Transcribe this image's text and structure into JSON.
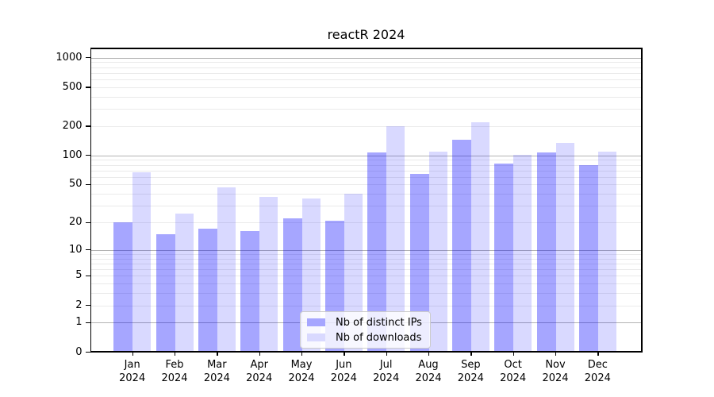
{
  "title": "reactR 2024",
  "chart_data": {
    "type": "bar",
    "title": "reactR 2024",
    "categories": [
      "Jan",
      "Feb",
      "Mar",
      "Apr",
      "May",
      "Jun",
      "Jul",
      "Aug",
      "Sep",
      "Oct",
      "Nov",
      "Dec"
    ],
    "category_year": "2024",
    "series": [
      {
        "name": "Nb of distinct IPs",
        "color": "rgba(0,0,255,0.35)",
        "color_hex": "#A6A6FF",
        "values": [
          20,
          15,
          17,
          16,
          22,
          21,
          107,
          65,
          145,
          83,
          107,
          80
        ]
      },
      {
        "name": "Nb of downloads",
        "color": "rgba(0,0,255,0.15)",
        "color_hex": "#D9D9FF",
        "values": [
          67,
          25,
          47,
          37,
          36,
          40,
          198,
          110,
          218,
          102,
          134,
          109
        ]
      }
    ],
    "yscale": "log1p",
    "yticks": [
      0,
      1,
      2,
      5,
      10,
      20,
      50,
      100,
      200,
      500,
      1000
    ],
    "ylim": [
      0,
      1270
    ],
    "xlabel": "",
    "ylabel": "",
    "grid": true,
    "legend_position": "lower center"
  },
  "colors": {
    "background": "#FFFFFF",
    "major_grid": "#B3B3B3",
    "minor_grid": "#EAEAEA",
    "spine": "#000000",
    "text": "#000000",
    "legend_border": "#CCCCCC",
    "legend_background": "rgba(255,255,255,0.8)"
  }
}
